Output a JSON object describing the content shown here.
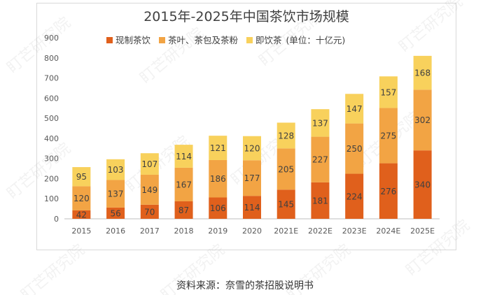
{
  "chart_data": {
    "type": "bar",
    "stacked": true,
    "title": "2015年-2025年中国茶饮市场规模",
    "categories": [
      "2015",
      "2016",
      "2017",
      "2018",
      "2019",
      "2020",
      "2021E",
      "2022E",
      "2023E",
      "2024E",
      "2025E"
    ],
    "series": [
      {
        "name": "现制茶饮",
        "color": "#e0601c",
        "values": [
          42,
          56,
          70,
          87,
          106,
          114,
          145,
          181,
          224,
          276,
          340
        ]
      },
      {
        "name": "茶叶、茶包及茶粉",
        "color": "#f2a444",
        "values": [
          120,
          137,
          149,
          167,
          186,
          177,
          205,
          227,
          250,
          275,
          302
        ]
      },
      {
        "name": "即饮茶",
        "color": "#f8d15c",
        "values": [
          95,
          103,
          107,
          114,
          121,
          120,
          128,
          137,
          147,
          157,
          168
        ]
      }
    ],
    "legend_note": "(单位：十亿元)",
    "legend_position": "top",
    "ylim": [
      0,
      900
    ],
    "yticks": [
      0,
      100,
      200,
      300,
      400,
      500,
      600,
      700,
      800,
      900
    ],
    "grid": false
  },
  "source_caption": "资料来源：奈雪的茶招股说明书",
  "watermark": "盯芒研究院"
}
